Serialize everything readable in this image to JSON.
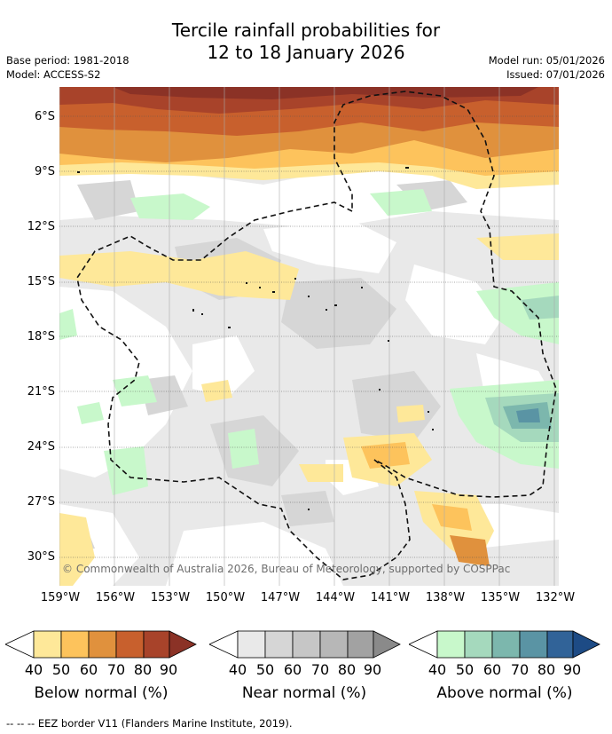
{
  "title_line1": "Tercile rainfall probabilities for",
  "title_line2": "12 to 18 January 2026",
  "base_period": "Base period: 1981-2018",
  "model": "Model: ACCESS-S2",
  "model_run": "Model run: 05/01/2026",
  "issued": "Issued: 07/01/2026",
  "copyright": "© Commonwealth of Australia 2026, Bureau of Meteorology, supported by COSPPac",
  "footer_note": "--  --  -- EEZ border V11 (Flanders Marine Institute, 2019).",
  "lat_labels": [
    "6°S",
    "9°S",
    "12°S",
    "15°S",
    "18°S",
    "21°S",
    "24°S",
    "27°S",
    "30°S"
  ],
  "lon_labels": [
    "159°W",
    "156°W",
    "153°W",
    "150°W",
    "147°W",
    "144°W",
    "141°W",
    "138°W",
    "135°W",
    "132°W"
  ],
  "legends": {
    "below": {
      "title": "Below normal (%)",
      "ticks": [
        "40",
        "50",
        "60",
        "70",
        "80",
        "90"
      ],
      "colors": [
        "#ffffff",
        "#fee899",
        "#fdc35c",
        "#e0913d",
        "#c8602d",
        "#a8432a",
        "#8b3226"
      ]
    },
    "near": {
      "title": "Near normal (%)",
      "ticks": [
        "40",
        "50",
        "60",
        "70",
        "80",
        "90"
      ],
      "colors": [
        "#ffffff",
        "#e9e9e9",
        "#d6d6d6",
        "#c6c6c6",
        "#b7b7b7",
        "#a2a2a2",
        "#8a8a8a"
      ]
    },
    "above": {
      "title": "Above normal (%)",
      "ticks": [
        "40",
        "50",
        "60",
        "70",
        "80",
        "90"
      ],
      "colors": [
        "#ffffff",
        "#c8f8cb",
        "#a5d9bd",
        "#7cb7ad",
        "#5a94a4",
        "#316398",
        "#1d4b85"
      ]
    }
  }
}
